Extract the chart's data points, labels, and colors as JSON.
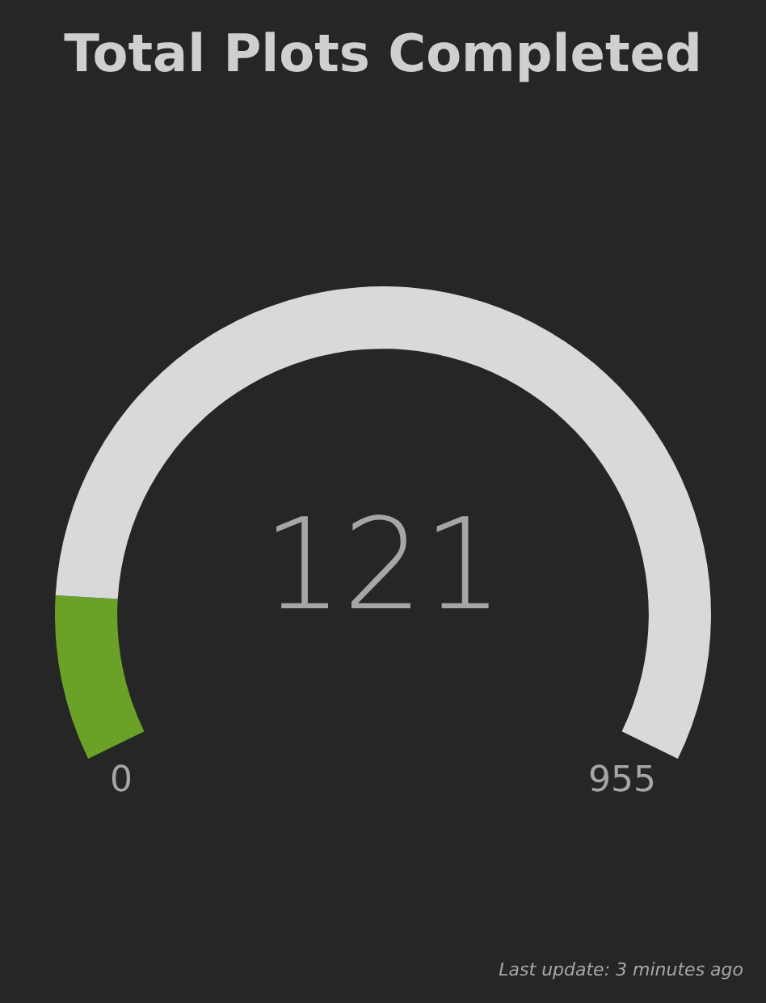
{
  "chart_data": {
    "type": "donut",
    "title": "Total Plots Completed",
    "categories": [
      null,
      null
    ],
    "values": [
      12.67,
      87.33
    ],
    "colors": [
      "#6aa227",
      "#d9d9d9"
    ],
    "legend": false,
    "annotations": [
      "121",
      "0",
      "955",
      "Last update: 3 minutes ago"
    ]
  }
}
